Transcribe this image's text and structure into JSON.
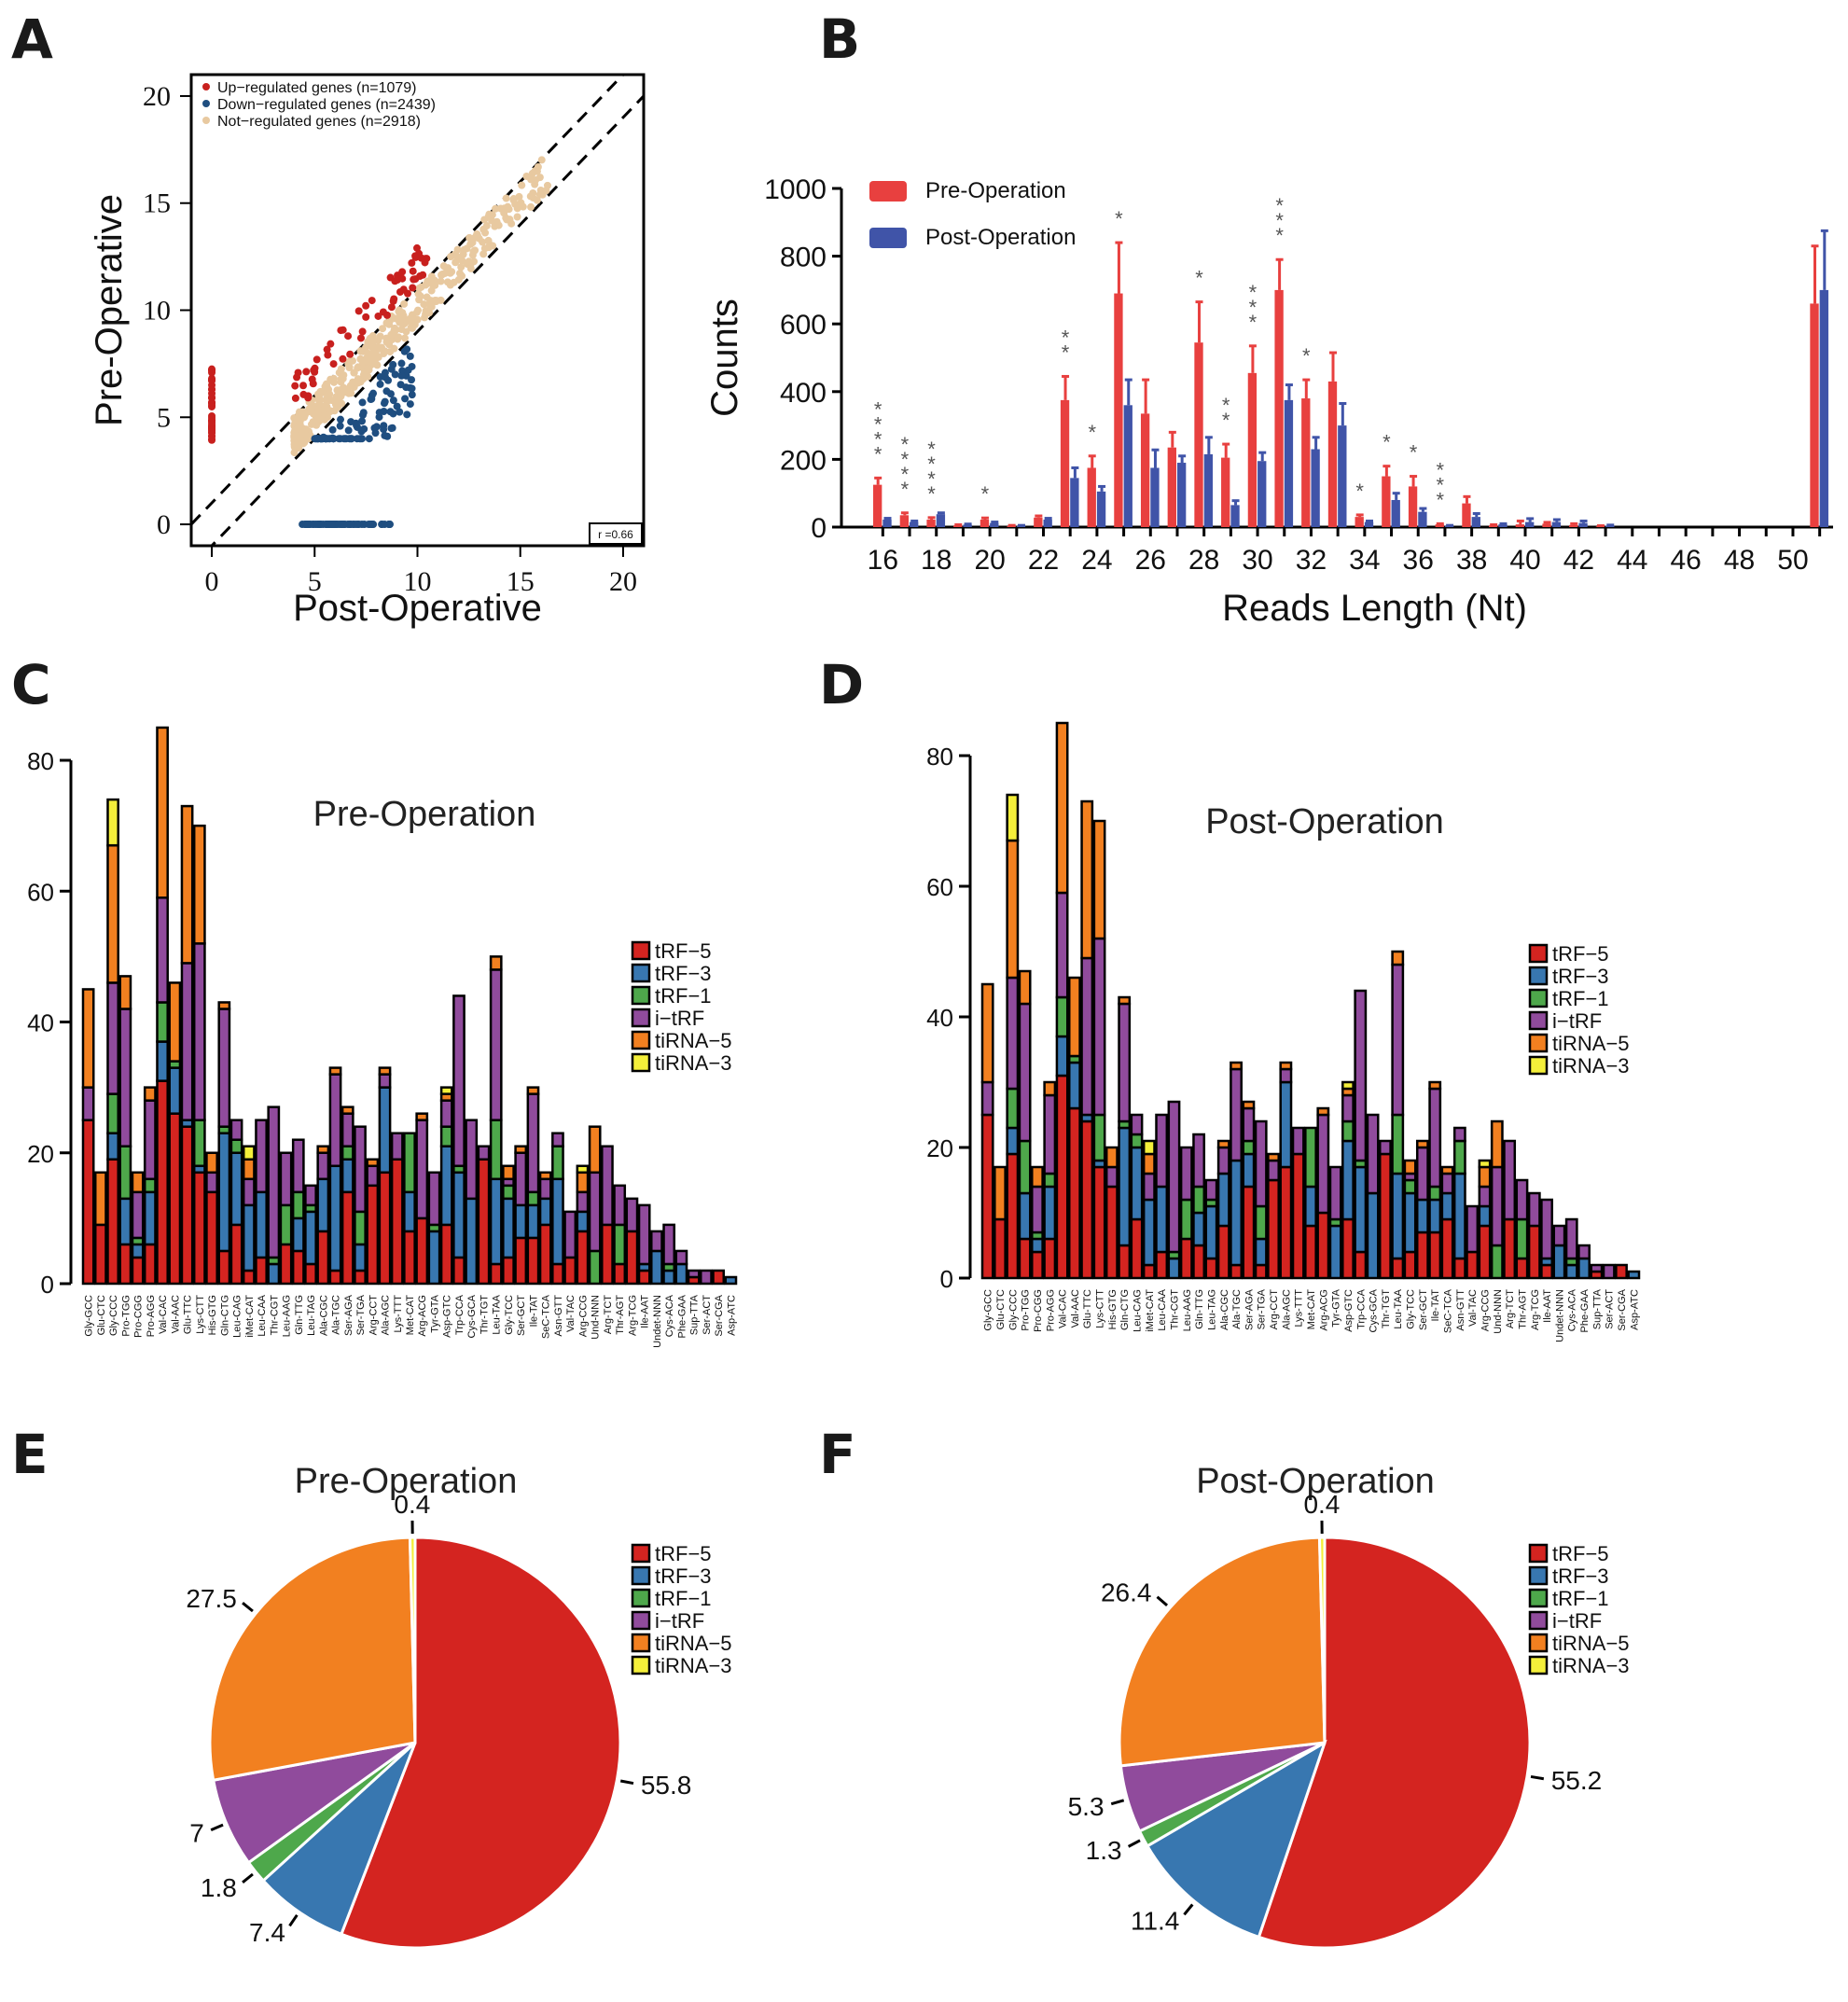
{
  "panels": {
    "A": "A",
    "B": "B",
    "C": "C",
    "D": "D",
    "E": "E",
    "F": "F"
  },
  "chart_data": [
    {
      "id": "A",
      "type": "scatter",
      "xlabel": "Post-Operative",
      "ylabel": "Pre-Operative",
      "xlim": [
        -1,
        21
      ],
      "ylim": [
        -1,
        21
      ],
      "xticks": [
        0,
        5,
        10,
        15,
        20
      ],
      "yticks": [
        0,
        5,
        10,
        15,
        20
      ],
      "legend": [
        {
          "label": "Up−regulated genes (n=1079)",
          "color": "#c8201e"
        },
        {
          "label": "Down−regulated genes (n=2439)",
          "color": "#1f4e80"
        },
        {
          "label": "Not−regulated genes (n=2918)",
          "color": "#e8c9a0"
        }
      ],
      "legend_position": "top-left",
      "annotation": "r =0.66",
      "reference_lines": [
        {
          "intercept": 1,
          "slope": 1
        },
        {
          "intercept": -1,
          "slope": 1
        }
      ]
    },
    {
      "id": "B",
      "type": "bar",
      "xlabel": "Reads Length (Nt)",
      "ylabel": "Counts",
      "ylim": [
        0,
        1000
      ],
      "yticks": [
        0,
        200,
        400,
        600,
        800,
        1000
      ],
      "xtick_labels": [
        "16",
        "18",
        "20",
        "22",
        "24",
        "26",
        "28",
        "30",
        "32",
        "34",
        "36",
        "38",
        "40",
        "42",
        "44",
        "46",
        "48",
        "50"
      ],
      "categories": [
        16,
        17,
        18,
        19,
        20,
        21,
        22,
        23,
        24,
        25,
        26,
        27,
        28,
        29,
        30,
        31,
        32,
        33,
        34,
        35,
        36,
        37,
        38,
        39,
        40,
        41,
        42,
        43,
        44,
        45,
        46,
        47,
        48,
        49,
        50,
        51
      ],
      "series": [
        {
          "name": "Pre-Operation",
          "color": "#e8403f",
          "values": [
            125,
            35,
            22,
            5,
            22,
            3,
            28,
            375,
            175,
            690,
            335,
            235,
            545,
            205,
            455,
            700,
            380,
            430,
            30,
            150,
            120,
            8,
            70,
            5,
            8,
            10,
            6,
            2,
            0,
            0,
            0,
            0,
            0,
            0,
            0,
            660
          ],
          "errors": [
            145,
            42,
            28,
            7,
            27,
            5,
            33,
            445,
            210,
            840,
            435,
            280,
            665,
            245,
            535,
            790,
            435,
            515,
            36,
            180,
            150,
            10,
            90,
            7,
            18,
            14,
            10,
            4,
            0,
            0,
            0,
            0,
            0,
            0,
            0,
            830
          ]
        },
        {
          "name": "Post-Operation",
          "color": "#4054a8",
          "values": [
            22,
            15,
            38,
            7,
            12,
            3,
            22,
            145,
            105,
            360,
            175,
            190,
            215,
            65,
            195,
            375,
            230,
            300,
            15,
            80,
            45,
            3,
            30,
            8,
            15,
            15,
            12,
            4,
            0,
            0,
            0,
            0,
            0,
            0,
            0,
            700
          ],
          "errors": [
            26,
            18,
            42,
            9,
            15,
            5,
            26,
            175,
            120,
            435,
            228,
            210,
            265,
            78,
            220,
            420,
            265,
            365,
            18,
            100,
            55,
            5,
            40,
            10,
            25,
            22,
            18,
            6,
            0,
            0,
            0,
            0,
            0,
            0,
            0,
            875
          ]
        }
      ],
      "significance": {
        "16": "****",
        "17": "****",
        "18": "****",
        "20": "*",
        "23": "**",
        "24": "*",
        "25": "*",
        "28": "*",
        "29": "**",
        "30": "***",
        "31": "***",
        "32": "*",
        "34": "*",
        "35": "*",
        "36": "*",
        "37": "***"
      },
      "legend_position": "top-left"
    },
    {
      "id": "C",
      "type": "bar",
      "stacked": true,
      "title": "Pre-Operation",
      "ylim": [
        0,
        85
      ],
      "yticks": [
        0,
        20,
        40,
        60,
        80
      ],
      "categories": [
        "Gly-GCC",
        "Glu-CTC",
        "Gly-CCC",
        "Pro-TGG",
        "Pro-CGG",
        "Pro-AGG",
        "Val-CAC",
        "Val-AAC",
        "Glu-TTC",
        "Lys-CTT",
        "His-GTG",
        "Gln-CTG",
        "Leu-CAG",
        "iMet-CAT",
        "Leu-CAA",
        "Thr-CGT",
        "Leu-AAG",
        "Gln-TTG",
        "Leu-TAG",
        "Ala-CGC",
        "Ala-TGC",
        "Ser-AGA",
        "Ser-TGA",
        "Arg-CCT",
        "Ala-AGC",
        "Lys-TTT",
        "Met-CAT",
        "Arg-ACG",
        "Tyr-GTA",
        "Asp-GTC",
        "Trp-CCA",
        "Cys-GCA",
        "Thr-TGT",
        "Leu-TAA",
        "Gly-TCC",
        "Ser-GCT",
        "Ile-TAT",
        "SeC-TCA",
        "Asn-GTT",
        "Val-TAC",
        "Arg-CCG",
        "Und-NNN",
        "Arg-TCT",
        "Thr-AGT",
        "Arg-TCG",
        "Ile-AAT",
        "Undet-NNN",
        "Cys-ACA",
        "Phe-GAA",
        "Sup-TTA",
        "Ser-ACT",
        "Ser-CGA",
        "Asp-ATC"
      ],
      "series_ref": "segments"
    },
    {
      "id": "D",
      "type": "bar",
      "stacked": true,
      "title": "Post-Operation",
      "ylim": [
        0,
        85
      ],
      "yticks": [
        0,
        20,
        40,
        60,
        80
      ],
      "series_ref": "segments"
    },
    {
      "id": "E",
      "type": "pie",
      "title": "Pre-Operation",
      "labels": [
        "tRF−5",
        "tRF−3",
        "tRF−1",
        "i−tRF",
        "tiRNA−5",
        "tiRNA−3"
      ],
      "values": [
        55.8,
        7.4,
        1.8,
        7,
        27.5,
        0.4
      ],
      "value_labels": [
        "55.8",
        "7.4",
        "1.8",
        "7",
        "27.5",
        "0.4"
      ],
      "legend_position": "top-right"
    },
    {
      "id": "F",
      "type": "pie",
      "title": "Post-Operation",
      "labels": [
        "tRF−5",
        "tRF−3",
        "tRF−1",
        "i−tRF",
        "tiRNA−5",
        "tiRNA−3"
      ],
      "values": [
        55.2,
        11.4,
        1.3,
        5.3,
        26.4,
        0.4
      ],
      "value_labels": [
        "55.2",
        "11.4",
        "1.3",
        "5.3",
        "26.4",
        "0.4"
      ],
      "legend_position": "top-right"
    }
  ],
  "stack_types": [
    {
      "name": "tRF−5",
      "color": "#d42420"
    },
    {
      "name": "tRF−3",
      "color": "#3877b0"
    },
    {
      "name": "tRF−1",
      "color": "#4ea84b"
    },
    {
      "name": "i−tRF",
      "color": "#904b9c"
    },
    {
      "name": "tiRNA−5",
      "color": "#f28020"
    },
    {
      "name": "tiRNA−3",
      "color": "#f4ef3a"
    }
  ],
  "segments": [
    [
      25,
      0,
      0,
      5,
      15,
      0
    ],
    [
      9,
      0,
      0,
      0,
      8,
      0
    ],
    [
      19,
      4,
      6,
      17,
      21,
      7
    ],
    [
      6,
      7,
      8,
      21,
      5,
      0
    ],
    [
      4,
      2,
      1,
      7,
      3,
      0
    ],
    [
      6,
      8,
      2,
      12,
      2,
      0
    ],
    [
      31,
      6,
      6,
      16,
      26,
      0
    ],
    [
      26,
      7,
      1,
      0,
      12,
      0
    ],
    [
      24,
      1,
      0,
      24,
      24,
      0
    ],
    [
      17,
      1,
      7,
      27,
      18,
      0
    ],
    [
      14,
      0,
      0,
      3,
      3,
      0
    ],
    [
      5,
      18,
      1,
      18,
      1,
      0
    ],
    [
      9,
      11,
      2,
      3,
      0,
      0
    ],
    [
      2,
      10,
      0,
      4,
      3,
      2
    ],
    [
      4,
      10,
      0,
      11,
      0,
      0
    ],
    [
      0,
      3,
      1,
      23,
      0,
      0
    ],
    [
      6,
      0,
      6,
      8,
      0,
      0
    ],
    [
      5,
      5,
      4,
      8,
      0,
      0
    ],
    [
      3,
      8,
      1,
      3,
      0,
      0
    ],
    [
      8,
      8,
      0,
      4,
      1,
      0
    ],
    [
      2,
      16,
      0,
      14,
      1,
      0
    ],
    [
      14,
      5,
      2,
      5,
      1,
      0
    ],
    [
      2,
      4,
      5,
      13,
      0,
      0
    ],
    [
      15,
      0,
      0,
      3,
      1,
      0
    ],
    [
      17,
      13,
      0,
      2,
      1,
      0
    ],
    [
      19,
      0,
      0,
      4,
      0,
      0
    ],
    [
      8,
      6,
      9,
      0,
      0,
      0
    ],
    [
      10,
      0,
      0,
      15,
      1,
      0
    ],
    [
      0,
      8,
      1,
      8,
      0,
      0
    ],
    [
      9,
      12,
      3,
      4,
      1,
      1
    ],
    [
      4,
      13,
      1,
      26,
      0,
      0
    ],
    [
      0,
      13,
      0,
      12,
      0,
      0
    ],
    [
      19,
      0,
      0,
      2,
      0,
      0
    ],
    [
      3,
      13,
      9,
      23,
      2,
      0
    ],
    [
      4,
      9,
      2,
      1,
      2,
      0
    ],
    [
      7,
      5,
      0,
      8,
      1,
      0
    ],
    [
      7,
      5,
      2,
      15,
      1,
      0
    ],
    [
      9,
      4,
      0,
      3,
      1,
      0
    ],
    [
      3,
      13,
      5,
      2,
      0,
      0
    ],
    [
      4,
      0,
      0,
      7,
      0,
      0
    ],
    [
      8,
      3,
      0,
      3,
      3,
      1
    ],
    [
      0,
      0,
      5,
      12,
      7,
      0
    ],
    [
      9,
      0,
      0,
      12,
      0,
      0
    ],
    [
      3,
      0,
      6,
      6,
      0,
      0
    ],
    [
      8,
      0,
      0,
      5,
      0,
      0
    ],
    [
      2,
      1,
      0,
      9,
      0,
      0
    ],
    [
      0,
      5,
      0,
      3,
      0,
      0
    ],
    [
      0,
      2,
      1,
      6,
      0,
      0
    ],
    [
      0,
      3,
      0,
      2,
      0,
      0
    ],
    [
      1,
      0,
      0,
      1,
      0,
      0
    ],
    [
      0,
      0,
      0,
      2,
      0,
      0
    ],
    [
      2,
      0,
      0,
      0,
      0,
      0
    ],
    [
      0,
      1,
      0,
      0,
      0,
      0
    ]
  ]
}
